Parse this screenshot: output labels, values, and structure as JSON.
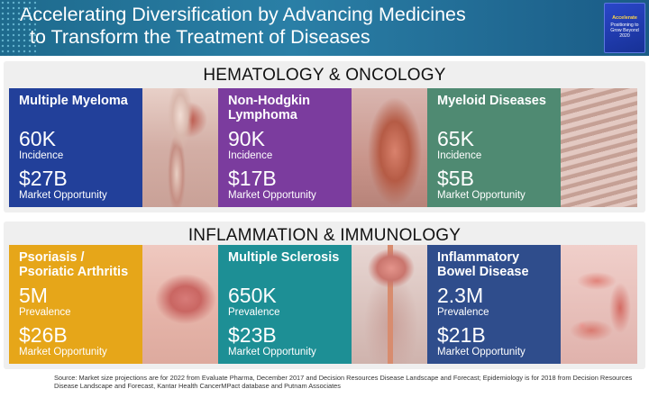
{
  "header": {
    "title_line1": "Accelerating Diversification by Advancing Medicines",
    "title_line2": "to Transform the Treatment of Diseases",
    "badge": {
      "line1": "Accelerate",
      "line2": "Positioning to Grow Beyond 2020"
    }
  },
  "sections": [
    {
      "title": "HEMATOLOGY & ONCOLOGY",
      "cards": [
        {
          "name": "Multiple Myeloma",
          "big1": "60K",
          "sub1": "Incidence",
          "big2": "$27B",
          "sub2": "Market Opportunity",
          "color": "#22409a",
          "image": "bone-image"
        },
        {
          "name": "Non-Hodgkin Lymphoma",
          "big1": "90K",
          "sub1": "Incidence",
          "big2": "$17B",
          "sub2": "Market Opportunity",
          "color": "#7b3c9e",
          "image": "lymph-image"
        },
        {
          "name": "Myeloid Diseases",
          "big1": "65K",
          "sub1": "Incidence",
          "big2": "$5B",
          "sub2": "Market Opportunity",
          "color": "#4f8a72",
          "image": "ribcage-image"
        }
      ]
    },
    {
      "title": "INFLAMMATION & IMMUNOLOGY",
      "cards": [
        {
          "name": "Psoriasis / Psoriatic Arthritis",
          "big1": "5M",
          "sub1": "Prevalence",
          "big2": "$26B",
          "sub2": "Market Opportunity",
          "color": "#e6a619",
          "image": "skin-image"
        },
        {
          "name": "Multiple Sclerosis",
          "big1": "650K",
          "sub1": "Prevalence",
          "big2": "$23B",
          "sub2": "Market Opportunity",
          "color": "#1d8f95",
          "image": "brain-spine-image"
        },
        {
          "name": "Inflammatory Bowel Disease",
          "big1": "2.3M",
          "sub1": "Prevalence",
          "big2": "$21B",
          "sub2": "Market Opportunity",
          "color": "#2f4d8c",
          "image": "intestine-image"
        }
      ]
    }
  ],
  "footer": "Source: Market size projections are for 2022 from Evaluate Pharma, December 2017 and Decision Resources Disease Landscape and Forecast; Epidemiology is for 2018 from Decision Resources Disease Landscape and Forecast, Kantar Health CancerMPact database and Putnam Associates"
}
